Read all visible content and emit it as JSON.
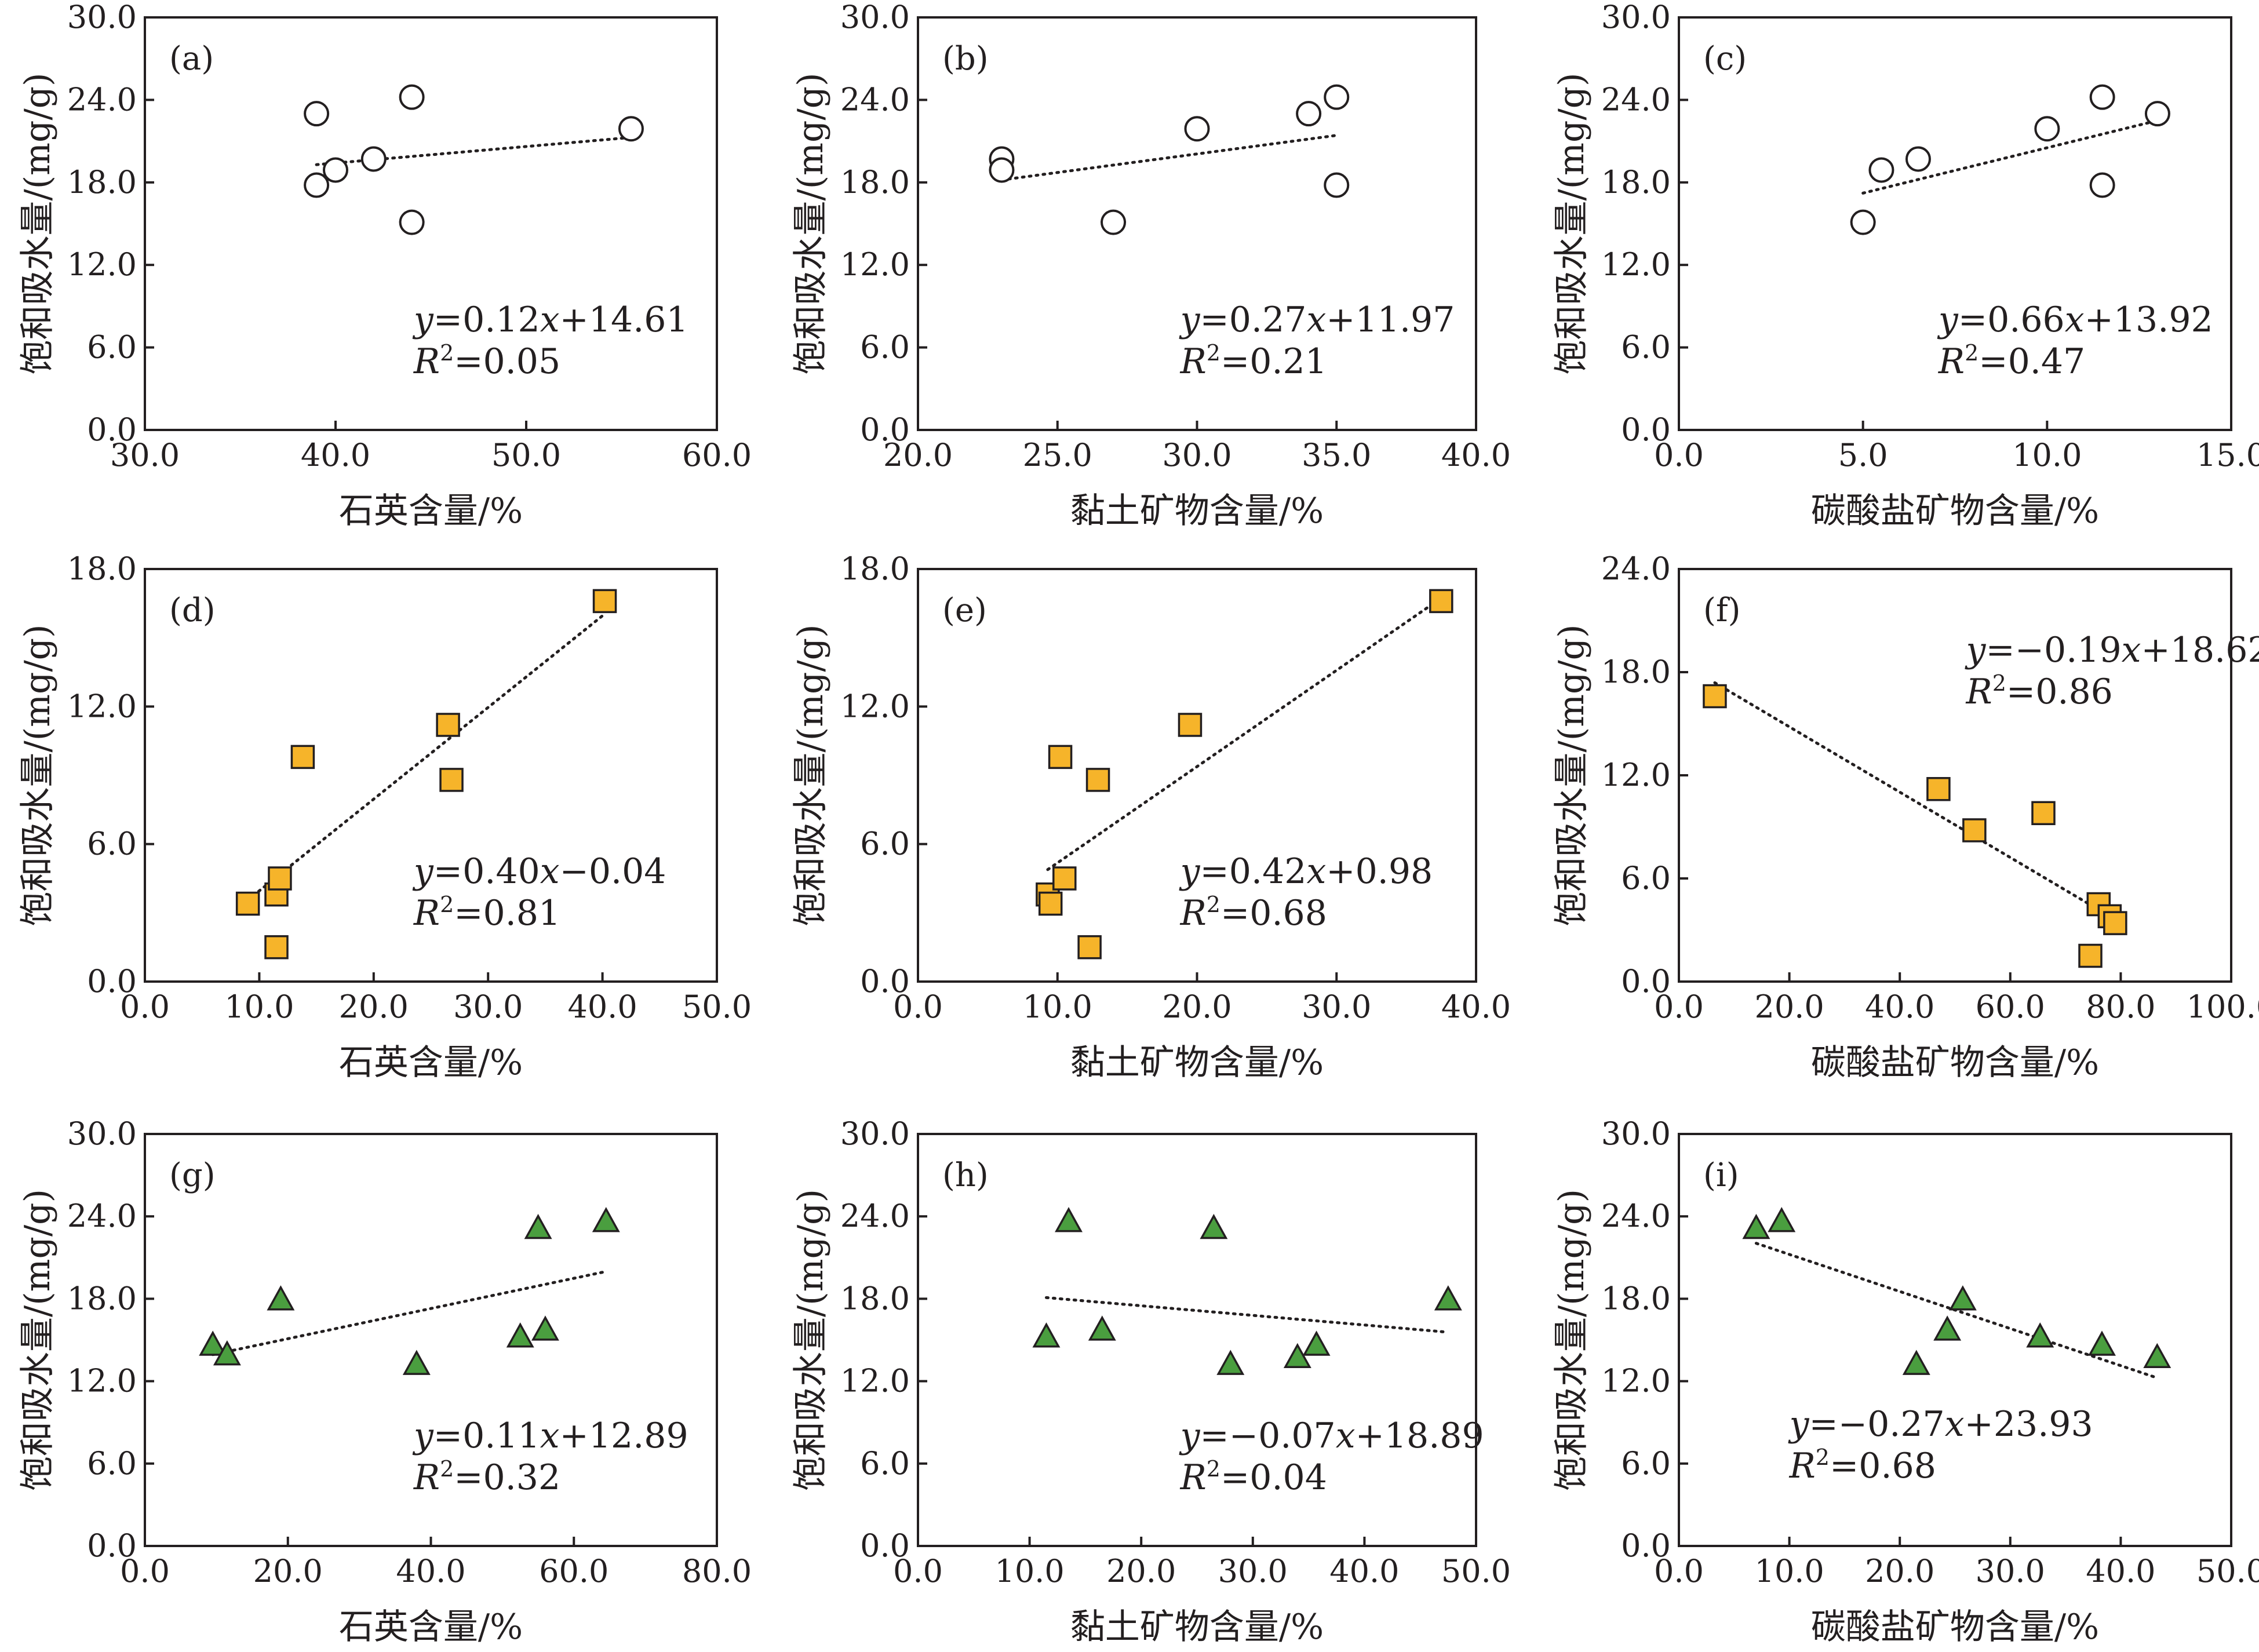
{
  "chart_data": [
    {
      "panel": "(a)",
      "type": "scatter",
      "marker": "circle",
      "marker_color": "#ffffff",
      "xlabel": "石英含量/%",
      "ylabel": "饱和吸水量/(mg/g)",
      "xlim": [
        30,
        60
      ],
      "ylim": [
        0,
        30
      ],
      "xticks": [
        "30.0",
        "40.0",
        "50.0",
        "60.0"
      ],
      "yticks": [
        "0.0",
        "6.0",
        "12.0",
        "18.0",
        "24.0",
        "30.0"
      ],
      "x": [
        39.0,
        40.0,
        39.0,
        42.0,
        44.0,
        44.0,
        55.5
      ],
      "y": [
        17.8,
        18.9,
        23.0,
        19.7,
        24.2,
        15.1,
        21.9
      ],
      "fit": {
        "slope": 0.12,
        "intercept": 14.61,
        "x_range": [
          39.0,
          55.5
        ]
      },
      "equation": "y=0.12x+14.61",
      "r2_label": "R²=0.05",
      "eq_anchor": "bottom-right"
    },
    {
      "panel": "(b)",
      "type": "scatter",
      "marker": "circle",
      "marker_color": "#ffffff",
      "xlabel": "黏土矿物含量/%",
      "ylabel": "饱和吸水量/(mg/g)",
      "xlim": [
        20,
        40
      ],
      "ylim": [
        0,
        30
      ],
      "xticks": [
        "20.0",
        "25.0",
        "30.0",
        "35.0",
        "40.0"
      ],
      "yticks": [
        "0.0",
        "6.0",
        "12.0",
        "18.0",
        "24.0",
        "30.0"
      ],
      "x": [
        23.0,
        23.0,
        27.0,
        30.0,
        34.0,
        35.0,
        35.0
      ],
      "y": [
        19.7,
        18.9,
        15.1,
        21.9,
        23.0,
        24.2,
        17.8
      ],
      "fit": {
        "slope": 0.27,
        "intercept": 11.97,
        "x_range": [
          23.0,
          35.0
        ]
      },
      "equation": "y=0.27x+11.97",
      "r2_label": "R²=0.21",
      "eq_anchor": "bottom-right"
    },
    {
      "panel": "(c)",
      "type": "scatter",
      "marker": "circle",
      "marker_color": "#ffffff",
      "xlabel": "碳酸盐矿物含量/%",
      "ylabel": "饱和吸水量/(mg/g)",
      "xlim": [
        0,
        15
      ],
      "ylim": [
        0,
        30
      ],
      "xticks": [
        "0.0",
        "5.0",
        "10.0",
        "15.0"
      ],
      "yticks": [
        "0.0",
        "6.0",
        "12.0",
        "18.0",
        "24.0",
        "30.0"
      ],
      "x": [
        5.0,
        5.5,
        6.5,
        10.0,
        11.5,
        11.5,
        13.0
      ],
      "y": [
        15.1,
        18.9,
        19.7,
        21.9,
        24.2,
        17.8,
        23.0
      ],
      "fit": {
        "slope": 0.66,
        "intercept": 13.92,
        "x_range": [
          5.0,
          13.0
        ]
      },
      "equation": "y=0.66x+13.92",
      "r2_label": "R²=0.47",
      "eq_anchor": "bottom-right"
    },
    {
      "panel": "(d)",
      "type": "scatter",
      "marker": "square",
      "marker_color": "#f6b42a",
      "xlabel": "石英含量/%",
      "ylabel": "饱和吸水量/(mg/g)",
      "xlim": [
        0,
        50
      ],
      "ylim": [
        0,
        18
      ],
      "xticks": [
        "0.0",
        "10.0",
        "20.0",
        "30.0",
        "40.0",
        "50.0"
      ],
      "yticks": [
        "0.0",
        "6.0",
        "12.0",
        "18.0"
      ],
      "x": [
        9.0,
        11.5,
        11.5,
        11.8,
        13.8,
        26.5,
        26.8,
        40.2
      ],
      "y": [
        3.4,
        3.8,
        1.5,
        4.5,
        9.8,
        11.2,
        8.8,
        16.6
      ],
      "fit": {
        "slope": 0.4,
        "intercept": -0.04,
        "x_range": [
          9.0,
          40.2
        ]
      },
      "equation": "y=0.40x−0.04",
      "r2_label": "R²=0.81",
      "eq_anchor": "bottom-right"
    },
    {
      "panel": "(e)",
      "type": "scatter",
      "marker": "square",
      "marker_color": "#f6b42a",
      "xlabel": "黏土矿物含量/%",
      "ylabel": "饱和吸水量/(mg/g)",
      "xlim": [
        0,
        40
      ],
      "ylim": [
        0,
        18
      ],
      "xticks": [
        "0.0",
        "10.0",
        "20.0",
        "30.0",
        "40.0"
      ],
      "yticks": [
        "0.0",
        "6.0",
        "12.0",
        "18.0"
      ],
      "x": [
        9.3,
        9.5,
        10.2,
        10.5,
        12.3,
        12.9,
        19.5,
        37.5
      ],
      "y": [
        3.8,
        3.4,
        9.8,
        4.5,
        1.5,
        8.8,
        11.2,
        16.6
      ],
      "fit": {
        "slope": 0.42,
        "intercept": 0.98,
        "x_range": [
          9.3,
          37.5
        ]
      },
      "equation": "y=0.42x+0.98",
      "r2_label": "R²=0.68",
      "eq_anchor": "bottom-right"
    },
    {
      "panel": "(f)",
      "type": "scatter",
      "marker": "square",
      "marker_color": "#f6b42a",
      "xlabel": "碳酸盐矿物含量/%",
      "ylabel": "饱和吸水量/(mg/g)",
      "xlim": [
        0,
        100
      ],
      "ylim": [
        0,
        24
      ],
      "xticks": [
        "0.0",
        "20.0",
        "40.0",
        "60.0",
        "80.0",
        "100.0"
      ],
      "yticks": [
        "0.0",
        "6.0",
        "12.0",
        "18.0",
        "24.0"
      ],
      "x": [
        6.5,
        47.0,
        53.5,
        66.0,
        74.5,
        76.0,
        78.0,
        79.0
      ],
      "y": [
        16.6,
        11.2,
        8.8,
        9.8,
        1.5,
        4.5,
        3.8,
        3.4
      ],
      "fit": {
        "slope": -0.19,
        "intercept": 18.62,
        "x_range": [
          6.5,
          79.0
        ]
      },
      "equation": "y=−0.19x+18.62",
      "r2_label": "R²=0.86",
      "eq_anchor": "top-right"
    },
    {
      "panel": "(g)",
      "type": "scatter",
      "marker": "triangle",
      "marker_color": "#4a9e3f",
      "xlabel": "石英含量/%",
      "ylabel": "饱和吸水量/(mg/g)",
      "xlim": [
        0,
        80
      ],
      "ylim": [
        0,
        30
      ],
      "xticks": [
        "0.0",
        "20.0",
        "40.0",
        "60.0",
        "80.0"
      ],
      "yticks": [
        "0.0",
        "6.0",
        "12.0",
        "18.0",
        "24.0",
        "30.0"
      ],
      "x": [
        9.5,
        11.5,
        19.0,
        38.0,
        52.5,
        55.0,
        56.0,
        64.5
      ],
      "y": [
        14.6,
        13.9,
        17.9,
        13.2,
        15.2,
        23.1,
        15.7,
        23.6
      ],
      "fit": {
        "slope": 0.11,
        "intercept": 12.89,
        "x_range": [
          9.5,
          64.5
        ]
      },
      "equation": "y=0.11x+12.89",
      "r2_label": "R²=0.32",
      "eq_anchor": "bottom-right"
    },
    {
      "panel": "(h)",
      "type": "scatter",
      "marker": "triangle",
      "marker_color": "#4a9e3f",
      "xlabel": "黏土矿物含量/%",
      "ylabel": "饱和吸水量/(mg/g)",
      "xlim": [
        0,
        50
      ],
      "ylim": [
        0,
        30
      ],
      "xticks": [
        "0.0",
        "10.0",
        "20.0",
        "30.0",
        "40.0",
        "50.0"
      ],
      "yticks": [
        "0.0",
        "6.0",
        "12.0",
        "18.0",
        "24.0",
        "30.0"
      ],
      "x": [
        11.5,
        13.5,
        16.5,
        26.5,
        28.0,
        34.0,
        35.7,
        47.5
      ],
      "y": [
        15.2,
        23.6,
        15.7,
        23.1,
        13.2,
        13.7,
        14.6,
        17.9
      ],
      "fit": {
        "slope": -0.07,
        "intercept": 18.89,
        "x_range": [
          11.5,
          47.5
        ]
      },
      "equation": "y=−0.07x+18.89",
      "r2_label": "R²=0.04",
      "eq_anchor": "bottom-right"
    },
    {
      "panel": "(i)",
      "type": "scatter",
      "marker": "triangle",
      "marker_color": "#4a9e3f",
      "xlabel": "碳酸盐矿物含量/%",
      "ylabel": "饱和吸水量/(mg/g)",
      "xlim": [
        0,
        50
      ],
      "ylim": [
        0,
        30
      ],
      "xticks": [
        "0.0",
        "10.0",
        "20.0",
        "30.0",
        "40.0",
        "50.0"
      ],
      "yticks": [
        "0.0",
        "6.0",
        "12.0",
        "18.0",
        "24.0",
        "30.0"
      ],
      "x": [
        7.0,
        9.3,
        21.5,
        24.3,
        25.7,
        32.7,
        38.3,
        43.3
      ],
      "y": [
        23.1,
        23.6,
        13.2,
        15.7,
        17.9,
        15.2,
        14.6,
        13.7
      ],
      "fit": {
        "slope": -0.27,
        "intercept": 23.93,
        "x_range": [
          7.0,
          43.3
        ]
      },
      "equation": "y=−0.27x+23.93",
      "r2_label": "R²=0.68",
      "eq_anchor": "bottom-left"
    }
  ]
}
